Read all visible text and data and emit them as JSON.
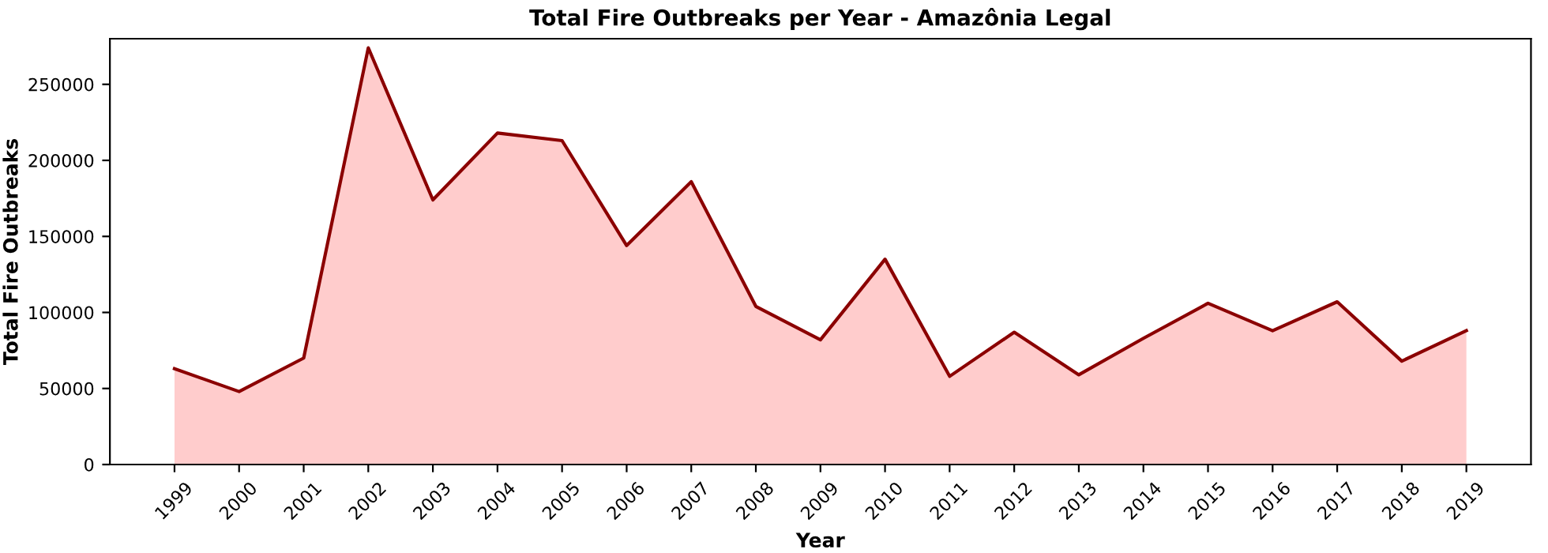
{
  "chart_data": {
    "type": "area",
    "title": "Total Fire Outbreaks per Year - Amazônia Legal",
    "xlabel": "Year",
    "ylabel": "Total Fire Outbreaks",
    "x": [
      1999,
      2000,
      2001,
      2002,
      2003,
      2004,
      2005,
      2006,
      2007,
      2008,
      2009,
      2010,
      2011,
      2012,
      2013,
      2014,
      2015,
      2016,
      2017,
      2018,
      2019
    ],
    "series": [
      {
        "color": "#8b0000",
        "values": [
          63000,
          48000,
          70000,
          274000,
          174000,
          218000,
          213000,
          144000,
          186000,
          104000,
          82000,
          135000,
          58000,
          87000,
          59000,
          83000,
          106000,
          88000,
          107000,
          68000,
          88000
        ]
      }
    ],
    "xlim": [
      1998,
      2020
    ],
    "ylim": [
      0,
      280000
    ],
    "xticks": [
      1999,
      2000,
      2001,
      2002,
      2003,
      2004,
      2005,
      2006,
      2007,
      2008,
      2009,
      2010,
      2011,
      2012,
      2013,
      2014,
      2015,
      2016,
      2017,
      2018,
      2019
    ],
    "yticks": [
      0,
      50000,
      100000,
      150000,
      200000,
      250000
    ],
    "grid": false
  }
}
